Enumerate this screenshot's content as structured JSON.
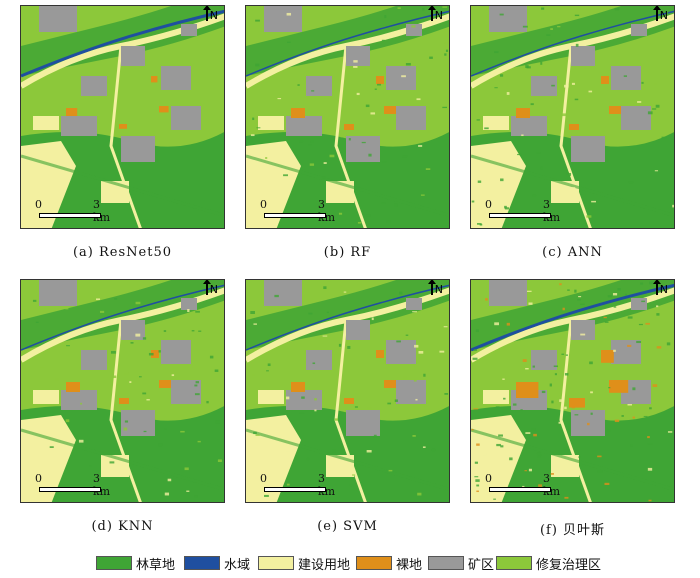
{
  "panels": [
    {
      "caption": "(a) ResNet50",
      "variant": "a"
    },
    {
      "caption": "(b) RF",
      "variant": "b"
    },
    {
      "caption": "(c) ANN",
      "variant": "c"
    },
    {
      "caption": "(d) KNN",
      "variant": "d"
    },
    {
      "caption": "(e) SVM",
      "variant": "e"
    },
    {
      "caption": "(f) 贝叶斯",
      "variant": "f"
    }
  ],
  "north_label": "N",
  "scale": {
    "start": "0",
    "end": "3 km"
  },
  "legend": [
    {
      "label": "林草地",
      "color": "#3fa535"
    },
    {
      "label": "水域",
      "color": "#1f4fa0"
    },
    {
      "label": "建设用地",
      "color": "#f3f0a0"
    },
    {
      "label": "裸地",
      "color": "#df8f1a"
    },
    {
      "label": "矿区",
      "color": "#999999"
    },
    {
      "label": "修复治理区",
      "color": "#8cc83a"
    }
  ]
}
